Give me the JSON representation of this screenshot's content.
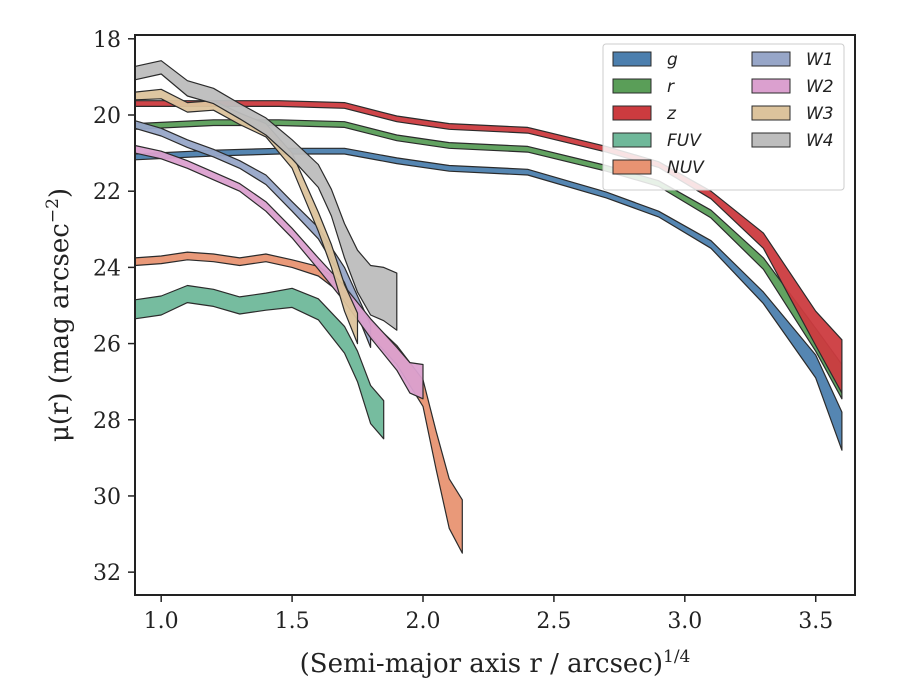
{
  "chart_data": {
    "type": "area",
    "xlabel": "(Semi-major axis r / arcsec)",
    "xlabel_sup": "1/4",
    "ylabel": "μ(r) (mag arcsec",
    "ylabel_sup": "−2",
    "ylabel_end": ")",
    "xlim": [
      0.9,
      3.65
    ],
    "ylim": [
      32.6,
      17.9
    ],
    "y_inverted": true,
    "xticks": [
      1.0,
      1.5,
      2.0,
      2.5,
      3.0,
      3.5
    ],
    "xtick_labels": [
      "1.0",
      "1.5",
      "2.0",
      "2.5",
      "3.0",
      "3.5"
    ],
    "yticks": [
      18,
      20,
      22,
      24,
      26,
      28,
      30,
      32
    ],
    "ytick_labels": [
      "18",
      "20",
      "22",
      "24",
      "26",
      "28",
      "30",
      "32"
    ],
    "grid": false,
    "legend_position": "top-right",
    "series": [
      {
        "name": "g",
        "color": "#4c7fae",
        "x": [
          0.9,
          1.2,
          1.45,
          1.7,
          1.9,
          2.1,
          2.4,
          2.7,
          2.9,
          3.1,
          3.3,
          3.5,
          3.6
        ],
        "y": [
          21.1,
          21.0,
          20.95,
          20.95,
          21.2,
          21.4,
          21.5,
          22.1,
          22.6,
          23.4,
          24.8,
          26.6,
          28.3
        ],
        "w": [
          0.15,
          0.15,
          0.15,
          0.15,
          0.15,
          0.15,
          0.15,
          0.15,
          0.15,
          0.2,
          0.3,
          0.6,
          1.0
        ]
      },
      {
        "name": "r",
        "color": "#5a9e58",
        "x": [
          0.9,
          1.2,
          1.45,
          1.7,
          1.9,
          2.1,
          2.4,
          2.7,
          2.9,
          3.1,
          3.3,
          3.5,
          3.6
        ],
        "y": [
          20.3,
          20.2,
          20.2,
          20.25,
          20.6,
          20.8,
          20.9,
          21.4,
          21.8,
          22.6,
          23.9,
          25.9,
          27.0
        ],
        "w": [
          0.15,
          0.15,
          0.15,
          0.15,
          0.15,
          0.15,
          0.15,
          0.15,
          0.15,
          0.2,
          0.3,
          0.6,
          0.9
        ]
      },
      {
        "name": "z",
        "color": "#cc3b3f",
        "x": [
          0.9,
          1.2,
          1.45,
          1.7,
          1.9,
          2.1,
          2.4,
          2.7,
          2.9,
          3.1,
          3.3,
          3.5,
          3.6
        ],
        "y": [
          19.7,
          19.7,
          19.7,
          19.75,
          20.1,
          20.3,
          20.4,
          20.9,
          21.3,
          22.1,
          23.3,
          25.6,
          26.6
        ],
        "w": [
          0.15,
          0.15,
          0.15,
          0.15,
          0.15,
          0.15,
          0.15,
          0.15,
          0.15,
          0.2,
          0.4,
          0.9,
          1.4
        ]
      },
      {
        "name": "FUV",
        "color": "#6fb89a",
        "x": [
          0.9,
          1.0,
          1.1,
          1.2,
          1.3,
          1.4,
          1.5,
          1.6,
          1.7,
          1.75,
          1.8,
          1.85
        ],
        "y": [
          25.1,
          25.0,
          24.7,
          24.8,
          25.0,
          24.9,
          24.8,
          25.1,
          25.9,
          26.6,
          27.6,
          28.0
        ],
        "w": [
          0.5,
          0.5,
          0.45,
          0.45,
          0.45,
          0.45,
          0.5,
          0.55,
          0.7,
          0.8,
          1.0,
          1.0
        ]
      },
      {
        "name": "NUV",
        "color": "#e89372",
        "x": [
          0.9,
          1.0,
          1.1,
          1.2,
          1.3,
          1.4,
          1.5,
          1.6,
          1.7,
          1.8,
          1.9,
          2.0,
          2.05,
          2.1,
          2.15
        ],
        "y": [
          23.85,
          23.8,
          23.7,
          23.75,
          23.85,
          23.75,
          23.9,
          24.1,
          24.6,
          25.6,
          26.3,
          27.3,
          28.8,
          30.2,
          30.8
        ],
        "w": [
          0.2,
          0.2,
          0.2,
          0.2,
          0.2,
          0.2,
          0.2,
          0.25,
          0.3,
          0.4,
          0.5,
          0.7,
          1.0,
          1.3,
          1.4
        ]
      },
      {
        "name": "W1",
        "color": "#97a6c8",
        "x": [
          0.9,
          1.0,
          1.1,
          1.2,
          1.3,
          1.4,
          1.5,
          1.6,
          1.7,
          1.75,
          1.8
        ],
        "y": [
          20.25,
          20.45,
          20.75,
          21.0,
          21.3,
          21.7,
          22.4,
          23.1,
          24.2,
          25.0,
          25.8
        ],
        "w": [
          0.2,
          0.2,
          0.2,
          0.2,
          0.2,
          0.25,
          0.25,
          0.3,
          0.4,
          0.5,
          0.6
        ]
      },
      {
        "name": "W2",
        "color": "#dba0cf",
        "x": [
          0.9,
          1.0,
          1.1,
          1.2,
          1.3,
          1.4,
          1.5,
          1.6,
          1.7,
          1.8,
          1.9,
          1.95,
          2.0
        ],
        "y": [
          20.9,
          21.05,
          21.3,
          21.6,
          21.9,
          22.4,
          23.1,
          23.9,
          24.7,
          25.6,
          26.4,
          26.9,
          27.0
        ],
        "w": [
          0.2,
          0.2,
          0.2,
          0.2,
          0.2,
          0.25,
          0.25,
          0.3,
          0.4,
          0.5,
          0.6,
          0.8,
          0.9
        ]
      },
      {
        "name": "W3",
        "color": "#dcc39c",
        "x": [
          0.9,
          1.0,
          1.1,
          1.2,
          1.3,
          1.4,
          1.5,
          1.55,
          1.6,
          1.65,
          1.7,
          1.75
        ],
        "y": [
          19.5,
          19.45,
          19.8,
          19.75,
          20.1,
          20.4,
          21.2,
          22.0,
          22.8,
          23.7,
          24.8,
          25.6
        ],
        "w": [
          0.2,
          0.25,
          0.25,
          0.25,
          0.3,
          0.35,
          0.4,
          0.45,
          0.5,
          0.6,
          0.7,
          0.8
        ]
      },
      {
        "name": "W4",
        "color": "#bdbdbd",
        "x": [
          0.9,
          1.0,
          1.1,
          1.2,
          1.3,
          1.4,
          1.5,
          1.6,
          1.65,
          1.7,
          1.75,
          1.8,
          1.85,
          1.9
        ],
        "y": [
          18.9,
          18.75,
          19.3,
          19.5,
          19.9,
          20.3,
          20.9,
          21.6,
          22.3,
          23.3,
          24.1,
          24.6,
          24.7,
          24.9
        ],
        "w": [
          0.35,
          0.35,
          0.4,
          0.4,
          0.4,
          0.45,
          0.5,
          0.6,
          0.7,
          0.9,
          1.1,
          1.3,
          1.4,
          1.5
        ]
      }
    ]
  }
}
